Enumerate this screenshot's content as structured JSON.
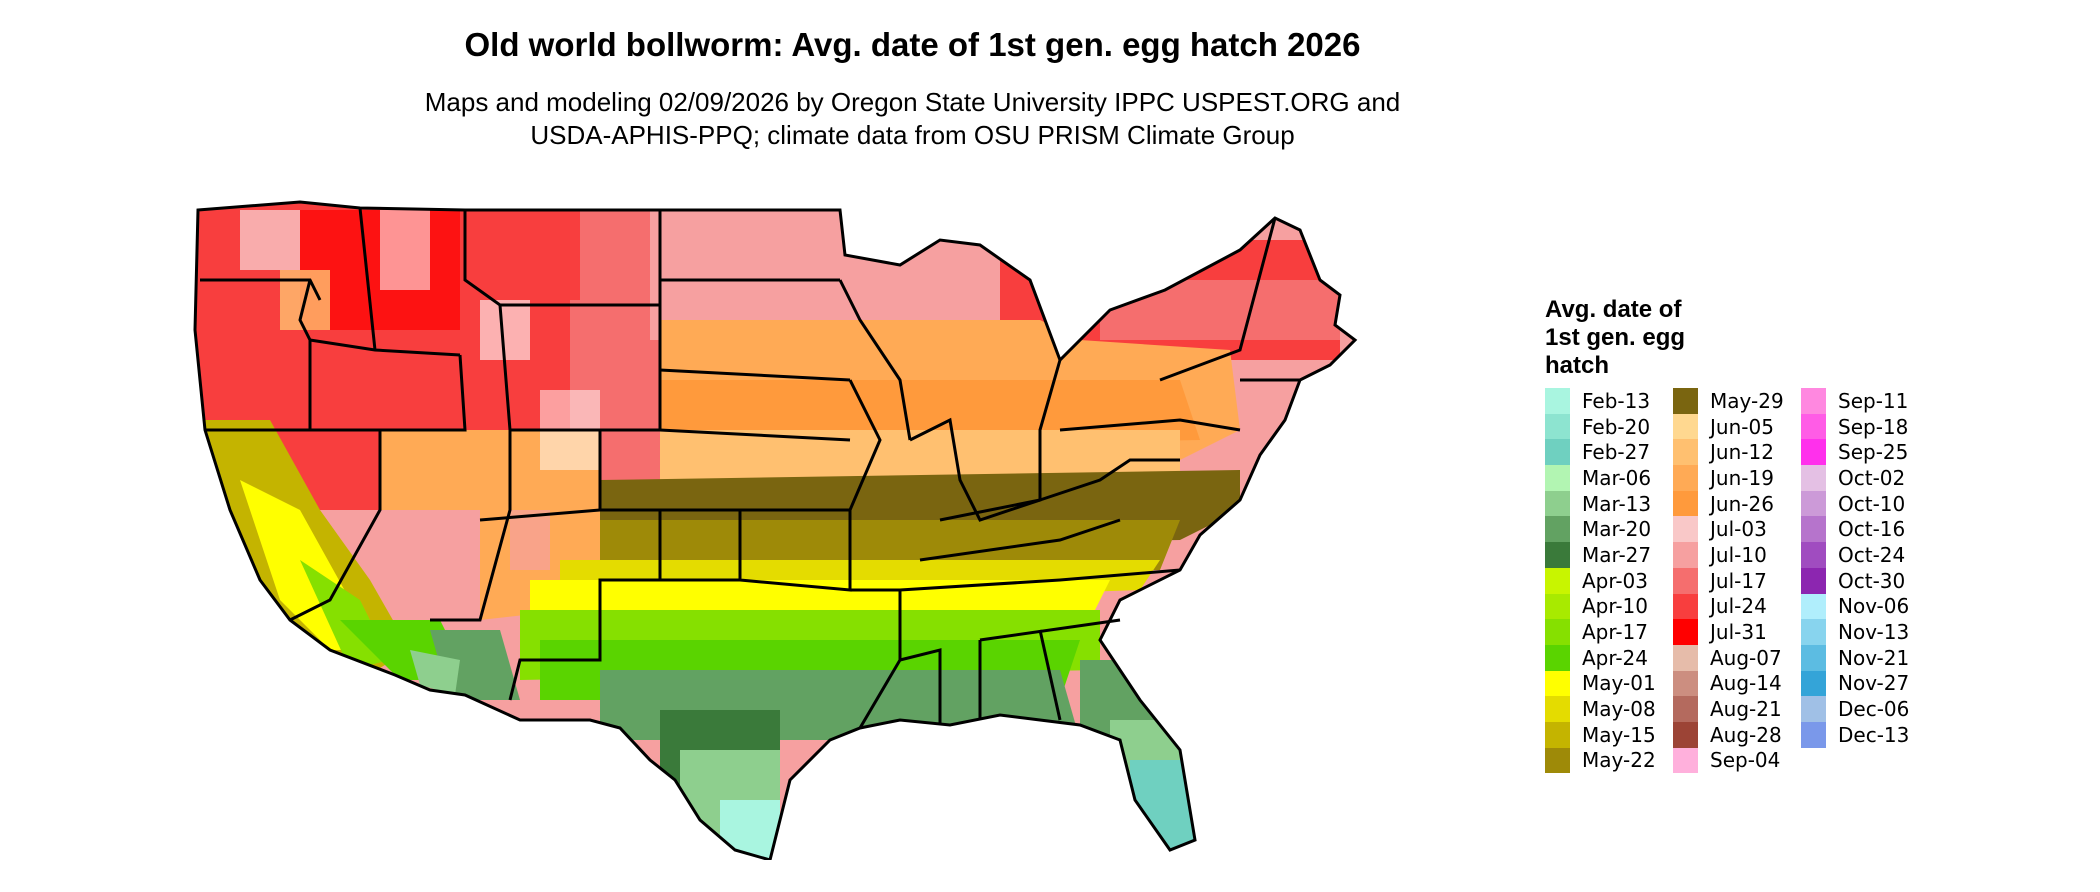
{
  "title": "Old world bollworm: Avg. date of 1st gen. egg hatch 2026",
  "subtitle_line1": "Maps and modeling 02/09/2026 by Oregon State University IPPC USPEST.ORG and",
  "subtitle_line2": "USDA-APHIS-PPQ; climate data from OSU PRISM Climate Group",
  "legend": {
    "title_lines": [
      "Avg. date of",
      "1st gen. egg",
      "hatch"
    ],
    "items": [
      {
        "label": "Feb-13",
        "color": "#a9f5e0"
      },
      {
        "label": "Feb-20",
        "color": "#8de4d0"
      },
      {
        "label": "Feb-27",
        "color": "#6fd0c0"
      },
      {
        "label": "Mar-06",
        "color": "#b2f5b2"
      },
      {
        "label": "Mar-13",
        "color": "#8ecf8e"
      },
      {
        "label": "Mar-20",
        "color": "#62a262"
      },
      {
        "label": "Mar-27",
        "color": "#3a7a3a"
      },
      {
        "label": "Apr-03",
        "color": "#c8f500"
      },
      {
        "label": "Apr-10",
        "color": "#a8ea00"
      },
      {
        "label": "Apr-17",
        "color": "#86e000"
      },
      {
        "label": "Apr-24",
        "color": "#5ad400"
      },
      {
        "label": "May-01",
        "color": "#ffff00"
      },
      {
        "label": "May-08",
        "color": "#e4dc00"
      },
      {
        "label": "May-15",
        "color": "#c4b400"
      },
      {
        "label": "May-22",
        "color": "#9e8a08"
      },
      {
        "label": "May-29",
        "color": "#7a6510"
      },
      {
        "label": "Jun-05",
        "color": "#ffd890"
      },
      {
        "label": "Jun-12",
        "color": "#ffc070"
      },
      {
        "label": "Jun-19",
        "color": "#ffaa55"
      },
      {
        "label": "Jun-26",
        "color": "#ff9a3c"
      },
      {
        "label": "Jul-03",
        "color": "#f9c8c8"
      },
      {
        "label": "Jul-10",
        "color": "#f6a0a0"
      },
      {
        "label": "Jul-17",
        "color": "#f56e6e"
      },
      {
        "label": "Jul-24",
        "color": "#f83e3e"
      },
      {
        "label": "Jul-31",
        "color": "#ff0000"
      },
      {
        "label": "Aug-07",
        "color": "#e6bcaa"
      },
      {
        "label": "Aug-14",
        "color": "#cc8e80"
      },
      {
        "label": "Aug-21",
        "color": "#b46a5e"
      },
      {
        "label": "Aug-28",
        "color": "#9c4436"
      },
      {
        "label": "Sep-04",
        "color": "#ffb0dc"
      },
      {
        "label": "Sep-11",
        "color": "#ff88e0"
      },
      {
        "label": "Sep-18",
        "color": "#ff5ce6"
      },
      {
        "label": "Sep-25",
        "color": "#ff30ec"
      },
      {
        "label": "Oct-02",
        "color": "#e4c0e4"
      },
      {
        "label": "Oct-10",
        "color": "#cc9ad8"
      },
      {
        "label": "Oct-16",
        "color": "#b674cc"
      },
      {
        "label": "Oct-24",
        "color": "#a04cc0"
      },
      {
        "label": "Oct-30",
        "color": "#8c26b0"
      },
      {
        "label": "Nov-06",
        "color": "#b0eefc"
      },
      {
        "label": "Nov-13",
        "color": "#88d4ee"
      },
      {
        "label": "Nov-21",
        "color": "#5cbce2"
      },
      {
        "label": "Nov-27",
        "color": "#34a4d8"
      },
      {
        "label": "Dec-06",
        "color": "#a0c0e6"
      },
      {
        "label": "Dec-13",
        "color": "#7a98ea"
      }
    ]
  }
}
